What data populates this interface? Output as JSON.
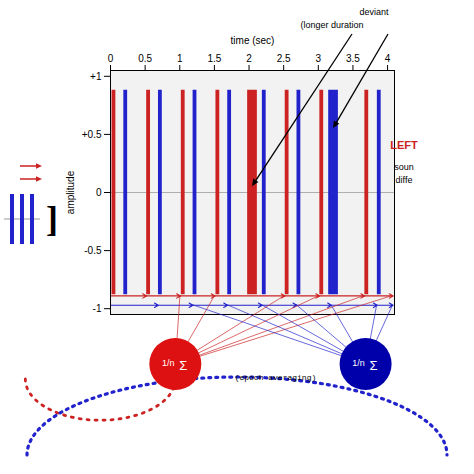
{
  "chart_data": {
    "type": "bar",
    "x_label": "time (sec)",
    "y_label": "amplitude",
    "xlim": [
      0,
      4.1
    ],
    "ylim": [
      -1.05,
      1.05
    ],
    "xticks": [
      0,
      0.5,
      1,
      1.5,
      2,
      2.5,
      3,
      3.5,
      4
    ],
    "yticks": [
      -1,
      -0.5,
      0,
      {
        "value": 0.5,
        "label": "+0.5"
      },
      {
        "value": 1,
        "label": "+1"
      }
    ],
    "series": [
      {
        "color": "#cc2222",
        "x": [
          0.05,
          0.55,
          1.05,
          1.55,
          2.55,
          3.05,
          3.7,
          2.05
        ],
        "values": [
          0.88,
          0.88,
          0.88,
          0.88,
          0.88,
          0.88,
          0.88,
          0.88
        ],
        "widths": [
          0.055,
          0.055,
          0.055,
          0.055,
          0.055,
          0.055,
          0.055,
          0.14
        ]
      },
      {
        "color": "#2222cc",
        "x": [
          0.22,
          0.72,
          1.22,
          1.72,
          2.22,
          2.72,
          3.88,
          3.22
        ],
        "values": [
          0.88,
          0.88,
          0.88,
          0.88,
          0.88,
          0.88,
          0.88,
          0.88
        ],
        "widths": [
          0.055,
          0.055,
          0.055,
          0.055,
          0.055,
          0.055,
          0.055,
          0.14
        ]
      }
    ],
    "epochs": [
      {
        "color": "#cc2222",
        "y": -0.89,
        "segments": [
          [
            0.01,
            0.52
          ],
          [
            0.52,
            1.01
          ],
          [
            1.01,
            1.51
          ],
          [
            1.51,
            2.52
          ],
          [
            2.52,
            3.02
          ],
          [
            3.02,
            3.67
          ],
          [
            3.67,
            4.08
          ]
        ],
        "average_color": "#dd1111",
        "average_label": [
          "1/n",
          "Σ"
        ]
      },
      {
        "color": "#2222cc",
        "y": -0.97,
        "segments": [
          [
            0.01,
            0.69
          ],
          [
            0.69,
            1.19
          ],
          [
            1.19,
            1.69
          ],
          [
            1.69,
            2.19
          ],
          [
            2.19,
            2.69
          ],
          [
            2.69,
            3.19
          ],
          [
            3.19,
            3.85
          ],
          [
            3.85,
            4.08
          ]
        ],
        "average_color": "#0000aa",
        "average_label": [
          "1/n",
          "Σ"
        ]
      }
    ],
    "annotations": [
      {
        "text": "(epoch averaging)"
      },
      {
        "text": "LEFT",
        "color": "#cc2222"
      },
      {
        "text": "soun"
      },
      {
        "text": "diffe"
      },
      {
        "text": "deviant"
      },
      {
        "text": "(longer duration",
        "points_to": [
          [
            2.05,
            0.05
          ],
          [
            3.22,
            0.55
          ]
        ]
      },
      {
        "text": "]"
      }
    ]
  }
}
